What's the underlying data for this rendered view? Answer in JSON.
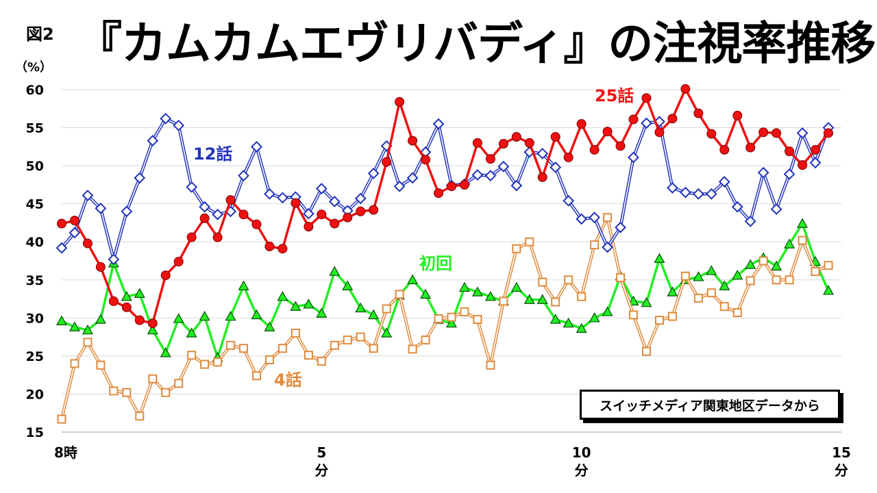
{
  "figure_label": "図2",
  "title": "『カムカムエヴリバディ』の注視率推移",
  "source_note": "スイッチメディア関東地区データから",
  "chart_data": {
    "type": "line",
    "title": "『カムカムエヴリバディ』の注視率推移",
    "ylabel": "（%）",
    "ylim": [
      15,
      60
    ],
    "ticks_y": [
      "15",
      "20",
      "25",
      "30",
      "35",
      "40",
      "45",
      "50",
      "55",
      "60"
    ],
    "xlim": [
      0,
      15
    ],
    "x_tick_labels": [
      {
        "x": 0,
        "label": "8時"
      },
      {
        "x": 5,
        "label": "5"
      },
      {
        "x": 10,
        "label": "10"
      },
      {
        "x": 15,
        "label": "15"
      }
    ],
    "x_unit_label": "分",
    "grid": "horizontal",
    "colors": {
      "ep1": "#22ee22",
      "ep4": "#e08a3c",
      "ep12": "#2233bb",
      "ep25": "#ee1111"
    },
    "x": [
      0,
      0.25,
      0.5,
      0.75,
      1,
      1.25,
      1.5,
      1.75,
      2,
      2.25,
      2.5,
      2.75,
      3,
      3.25,
      3.5,
      3.75,
      4,
      4.25,
      4.5,
      4.75,
      5,
      5.25,
      5.5,
      5.75,
      6,
      6.25,
      6.5,
      6.75,
      7,
      7.25,
      7.5,
      7.75,
      8,
      8.25,
      8.5,
      8.75,
      9,
      9.25,
      9.5,
      9.75,
      10,
      10.25,
      10.5,
      10.75,
      11,
      11.25,
      11.5,
      11.75,
      12,
      12.25,
      12.5,
      12.75,
      13,
      13.25,
      13.5,
      13.75,
      14,
      14.25,
      14.5,
      14.75
    ],
    "series": [
      {
        "name": "初回",
        "key": "ep1",
        "marker": "triangle",
        "values": [
          29.6,
          28.8,
          28.4,
          29.8,
          37.2,
          32.8,
          33.2,
          28.4,
          25.4,
          29.9,
          28.0,
          30.2,
          24.8,
          30.2,
          34.2,
          30.4,
          28.8,
          32.8,
          31.5,
          31.8,
          30.6,
          36.1,
          34.2,
          31.3,
          30.4,
          28.0,
          33.0,
          35.0,
          33.1,
          29.8,
          29.3,
          34.0,
          33.4,
          32.8,
          32.2,
          34.0,
          32.4,
          32.4,
          29.8,
          29.3,
          28.6,
          30.0,
          30.8,
          35.5,
          32.2,
          32.0,
          37.8,
          33.4,
          35.0,
          35.4,
          36.2,
          34.2,
          35.6,
          37.0,
          37.9,
          36.8,
          39.7,
          42.4,
          37.4,
          33.6
        ]
      },
      {
        "name": "4話",
        "key": "ep4",
        "marker": "square",
        "values": [
          16.7,
          24.0,
          26.8,
          23.8,
          20.4,
          20.2,
          17.1,
          22.0,
          20.2,
          21.4,
          25.1,
          23.9,
          24.2,
          26.4,
          26.0,
          22.4,
          24.5,
          26.0,
          28.0,
          25.1,
          24.3,
          26.4,
          27.1,
          27.5,
          26.0,
          31.2,
          33.1,
          25.9,
          27.1,
          29.9,
          30.1,
          30.8,
          29.8,
          23.8,
          32.2,
          39.1,
          40.0,
          34.7,
          32.1,
          35.0,
          32.8,
          39.6,
          43.2,
          35.3,
          30.4,
          25.6,
          29.7,
          30.2,
          35.5,
          32.6,
          33.3,
          31.5,
          30.7,
          34.9,
          37.5,
          35.0,
          35.0,
          40.2,
          36.1,
          36.9
        ]
      },
      {
        "name": "12話",
        "key": "ep12",
        "marker": "diamond",
        "values": [
          39.2,
          41.2,
          46.1,
          44.4,
          37.7,
          44.0,
          48.4,
          53.3,
          56.2,
          55.3,
          47.2,
          44.6,
          43.6,
          44.0,
          48.7,
          52.5,
          46.3,
          45.8,
          45.9,
          43.7,
          47.0,
          45.3,
          44.1,
          45.7,
          49.0,
          52.6,
          47.3,
          48.4,
          51.8,
          55.5,
          47.4,
          47.6,
          48.8,
          48.7,
          49.9,
          47.4,
          51.8,
          51.6,
          49.8,
          45.4,
          43.0,
          43.2,
          39.3,
          41.9,
          51.1,
          55.6,
          55.8,
          47.1,
          46.5,
          46.3,
          46.3,
          47.9,
          44.6,
          42.7,
          49.1,
          44.3,
          48.9,
          54.3,
          50.4,
          55.0
        ]
      },
      {
        "name": "25話",
        "key": "ep25",
        "marker": "circle",
        "values": [
          42.4,
          42.8,
          39.8,
          36.7,
          32.2,
          31.4,
          29.7,
          29.3,
          35.6,
          37.4,
          40.6,
          43.1,
          40.6,
          45.5,
          43.6,
          42.3,
          39.4,
          39.1,
          45.1,
          42.0,
          43.6,
          42.4,
          43.2,
          44.0,
          44.2,
          50.5,
          58.4,
          53.3,
          50.8,
          46.4,
          47.3,
          47.5,
          53.0,
          50.9,
          52.9,
          53.8,
          53.0,
          48.5,
          53.8,
          51.1,
          55.5,
          52.1,
          54.5,
          52.6,
          56.1,
          58.9,
          54.4,
          56.2,
          60.1,
          56.9,
          54.2,
          52.1,
          56.6,
          52.4,
          54.4,
          54.3,
          51.9,
          50.1,
          52.1,
          54.3
        ]
      }
    ],
    "series_labels": [
      {
        "key": "ep1",
        "text": "初回"
      },
      {
        "key": "ep4",
        "text": "4話"
      },
      {
        "key": "ep12",
        "text": "12話"
      },
      {
        "key": "ep25",
        "text": "25話"
      }
    ]
  }
}
